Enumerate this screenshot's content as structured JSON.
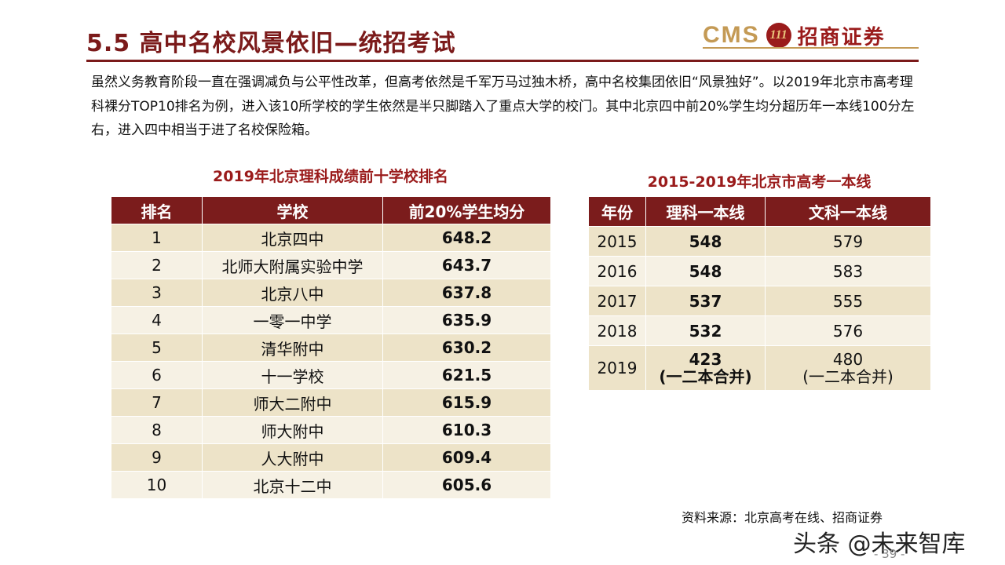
{
  "header": {
    "title": "5.5  高中名校风景依旧—统招考试",
    "logo_latin": "CMS",
    "logo_mark": "111",
    "logo_text": "招商证券"
  },
  "intro": "虽然义务教育阶段一直在强调减负与公平性改革，但高考依然是千军万马过独木桥，高中名校集团依旧“风景独好”。以2019年北京市高考理科裸分TOP10排名为例，进入该10所学校的学生依然是半只脚踏入了重点大学的校门。其中北京四中前20%学生均分超历年一本线100分左右，进入四中相当于进了名校保险箱。",
  "ranking_table": {
    "caption": "2019年北京理科成绩前十学校排名",
    "headers": [
      "排名",
      "学校",
      "前20%学生均分"
    ],
    "rows": [
      [
        "1",
        "北京四中",
        "648.2"
      ],
      [
        "2",
        "北师大附属实验中学",
        "643.7"
      ],
      [
        "3",
        "北京八中",
        "637.8"
      ],
      [
        "4",
        "一零一中学",
        "635.9"
      ],
      [
        "5",
        "清华附中",
        "630.2"
      ],
      [
        "6",
        "十一学校",
        "621.5"
      ],
      [
        "7",
        "师大二附中",
        "615.9"
      ],
      [
        "8",
        "师大附中",
        "610.3"
      ],
      [
        "9",
        "人大附中",
        "609.4"
      ],
      [
        "10",
        "北京十二中",
        "605.6"
      ]
    ]
  },
  "cutoff_table": {
    "caption": "2015-2019年北京市高考一本线",
    "headers": [
      "年份",
      "理科一本线",
      "文科一本线"
    ],
    "rows": [
      [
        "2015",
        "548",
        "579"
      ],
      [
        "2016",
        "548",
        "583"
      ],
      [
        "2017",
        "537",
        "555"
      ],
      [
        "2018",
        "532",
        "576"
      ]
    ],
    "last_row": {
      "year": "2019",
      "science": "423",
      "science_note": "(一二本合并)",
      "arts": "480",
      "arts_note": "(一二本合并)"
    }
  },
  "source": "资料来源：北京高考在线、招商证券",
  "watermark": "头条 @未来智库",
  "page_number": "- 39 -",
  "colors": {
    "accent": "#7b1a1a",
    "header_bg": "#7b1c1c",
    "row_odd": "#ede3c8",
    "row_even": "#f6f1e4",
    "logo_gold": "#c49a55"
  }
}
